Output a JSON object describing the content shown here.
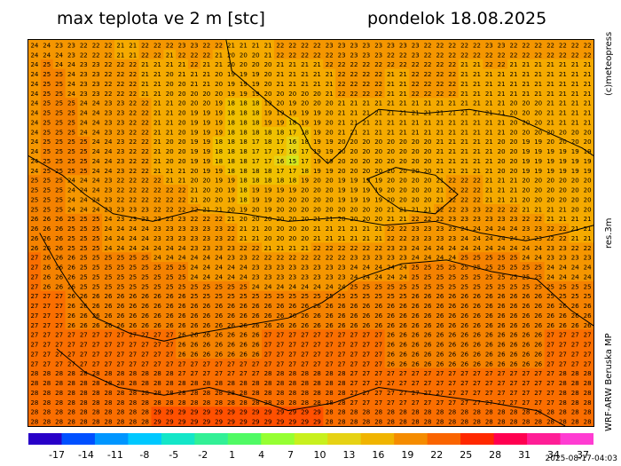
{
  "header": {
    "title": "max teplota ve 2 m [stc]",
    "day": "pondelok 18.08.2025"
  },
  "side_labels": {
    "copyright": "(c)meteopress",
    "resolution": "res.3m",
    "model": "WRF-ARW Beruska MP"
  },
  "timestamp": "2025-08-17-04:03",
  "colors": {
    "border": "#000000",
    "text": "#000000",
    "scale": [
      "#2800c8",
      "#0050ff",
      "#0096ff",
      "#00c8ff",
      "#14e6c8",
      "#32f096",
      "#50fa64",
      "#96ff32",
      "#c8f01e",
      "#e6d214",
      "#f0b400",
      "#f58c00",
      "#fa6400",
      "#ff2800",
      "#ff0050",
      "#ff1e96",
      "#ff3cd2"
    ]
  },
  "colorbar": {
    "ticks": [
      "-17",
      "-14",
      "-11",
      "-8",
      "-5",
      "-2",
      "1",
      "4",
      "7",
      "10",
      "13",
      "16",
      "19",
      "22",
      "25",
      "28",
      "31",
      "34",
      "37"
    ]
  },
  "map": {
    "cols": 46,
    "rows": 40,
    "seed_rows": [
      [
        24,
        24,
        23,
        23,
        22,
        22,
        22,
        21,
        21,
        22,
        22,
        22,
        23,
        23,
        22,
        22,
        21,
        21,
        21,
        21,
        22,
        22,
        22,
        22,
        23,
        23,
        23,
        23,
        23,
        23,
        23,
        23,
        22,
        22,
        22,
        22,
        22,
        23,
        23,
        22,
        22,
        22,
        22,
        22,
        22,
        22
      ],
      [
        24,
        25,
        25,
        24,
        23,
        23,
        22,
        22,
        22,
        21,
        21,
        20,
        20,
        21,
        21,
        20,
        19,
        19,
        19,
        20,
        21,
        21,
        21,
        21,
        21,
        22,
        22,
        22,
        22,
        21,
        21,
        22,
        22,
        22,
        22,
        21,
        21,
        21,
        21,
        21,
        21,
        21,
        21,
        21,
        21,
        21
      ],
      [
        24,
        25,
        25,
        25,
        24,
        24,
        23,
        23,
        22,
        22,
        21,
        21,
        20,
        19,
        19,
        19,
        18,
        18,
        18,
        19,
        19,
        18,
        19,
        19,
        20,
        21,
        21,
        21,
        21,
        21,
        21,
        21,
        21,
        21,
        21,
        21,
        21,
        21,
        21,
        20,
        20,
        20,
        21,
        21,
        21,
        21
      ],
      [
        24,
        25,
        25,
        25,
        25,
        24,
        24,
        23,
        22,
        22,
        21,
        20,
        20,
        19,
        19,
        18,
        18,
        18,
        17,
        17,
        16,
        15,
        17,
        19,
        19,
        20,
        20,
        20,
        20,
        20,
        20,
        20,
        20,
        21,
        21,
        21,
        21,
        21,
        20,
        20,
        19,
        19,
        19,
        19,
        19,
        19
      ],
      [
        25,
        25,
        25,
        24,
        24,
        24,
        23,
        22,
        22,
        22,
        22,
        22,
        22,
        21,
        20,
        20,
        19,
        18,
        19,
        19,
        20,
        20,
        20,
        20,
        20,
        19,
        19,
        19,
        19,
        20,
        20,
        20,
        20,
        21,
        22,
        22,
        22,
        21,
        21,
        21,
        20,
        20,
        20,
        20,
        20,
        20
      ],
      [
        26,
        26,
        26,
        25,
        25,
        25,
        24,
        24,
        24,
        24,
        23,
        23,
        23,
        23,
        23,
        23,
        22,
        21,
        21,
        20,
        20,
        20,
        20,
        21,
        21,
        21,
        21,
        21,
        21,
        22,
        22,
        23,
        23,
        23,
        23,
        24,
        24,
        24,
        24,
        24,
        23,
        23,
        22,
        22,
        21,
        21
      ],
      [
        27,
        26,
        26,
        26,
        25,
        25,
        25,
        25,
        25,
        25,
        25,
        25,
        25,
        24,
        24,
        24,
        24,
        24,
        23,
        23,
        23,
        23,
        23,
        23,
        23,
        23,
        24,
        24,
        24,
        24,
        24,
        25,
        25,
        25,
        25,
        25,
        25,
        25,
        25,
        25,
        25,
        25,
        24,
        24,
        24,
        24
      ],
      [
        27,
        27,
        27,
        26,
        26,
        26,
        26,
        26,
        26,
        26,
        26,
        26,
        26,
        26,
        26,
        26,
        26,
        26,
        26,
        26,
        26,
        26,
        26,
        26,
        26,
        26,
        26,
        26,
        26,
        26,
        26,
        26,
        26,
        26,
        26,
        26,
        26,
        26,
        26,
        26,
        26,
        26,
        26,
        26,
        26,
        26
      ],
      [
        27,
        27,
        27,
        27,
        27,
        27,
        27,
        27,
        27,
        27,
        27,
        27,
        26,
        26,
        26,
        26,
        26,
        26,
        26,
        27,
        27,
        27,
        27,
        27,
        27,
        27,
        27,
        27,
        27,
        26,
        26,
        26,
        26,
        26,
        26,
        26,
        26,
        26,
        26,
        26,
        26,
        26,
        27,
        27,
        27,
        27
      ],
      [
        28,
        28,
        28,
        28,
        28,
        28,
        28,
        28,
        28,
        28,
        28,
        28,
        28,
        28,
        28,
        28,
        28,
        28,
        28,
        28,
        28,
        28,
        28,
        28,
        28,
        28,
        27,
        27,
        27,
        27,
        27,
        27,
        27,
        27,
        27,
        27,
        27,
        27,
        27,
        27,
        27,
        27,
        27,
        28,
        28,
        28
      ],
      [
        28,
        28,
        28,
        28,
        28,
        28,
        28,
        28,
        28,
        28,
        29,
        29,
        29,
        29,
        29,
        29,
        29,
        29,
        29,
        29,
        29,
        29,
        29,
        29,
        28,
        28,
        28,
        28,
        28,
        28,
        28,
        28,
        28,
        28,
        28,
        28,
        28,
        28,
        28,
        28,
        28,
        28,
        28,
        28,
        28,
        28
      ]
    ],
    "contours": [
      [
        [
          0.0,
          0.3
        ],
        [
          0.06,
          0.35
        ],
        [
          0.1,
          0.4
        ],
        [
          0.15,
          0.45
        ],
        [
          0.22,
          0.47
        ],
        [
          0.3,
          0.44
        ],
        [
          0.38,
          0.45
        ],
        [
          0.46,
          0.47
        ],
        [
          0.55,
          0.46
        ],
        [
          0.63,
          0.48
        ],
        [
          0.72,
          0.47
        ],
        [
          0.8,
          0.5
        ],
        [
          0.88,
          0.52
        ],
        [
          0.95,
          0.5
        ],
        [
          1.0,
          0.48
        ]
      ],
      [
        [
          0.35,
          0.0
        ],
        [
          0.36,
          0.08
        ],
        [
          0.4,
          0.13
        ],
        [
          0.44,
          0.18
        ],
        [
          0.48,
          0.22
        ],
        [
          0.5,
          0.28
        ],
        [
          0.53,
          0.32
        ],
        [
          0.56,
          0.28
        ],
        [
          0.58,
          0.22
        ],
        [
          0.62,
          0.18
        ],
        [
          0.7,
          0.19
        ],
        [
          0.78,
          0.18
        ],
        [
          0.86,
          0.2
        ],
        [
          0.92,
          0.24
        ],
        [
          0.98,
          0.28
        ],
        [
          1.0,
          0.3
        ]
      ],
      [
        [
          0.02,
          0.5
        ],
        [
          0.05,
          0.58
        ],
        [
          0.08,
          0.65
        ],
        [
          0.12,
          0.72
        ],
        [
          0.18,
          0.76
        ],
        [
          0.24,
          0.78
        ],
        [
          0.3,
          0.76
        ],
        [
          0.38,
          0.74
        ],
        [
          0.46,
          0.72
        ],
        [
          0.52,
          0.68
        ],
        [
          0.58,
          0.62
        ],
        [
          0.66,
          0.58
        ],
        [
          0.74,
          0.57
        ],
        [
          0.82,
          0.6
        ],
        [
          0.9,
          0.62
        ],
        [
          0.96,
          0.7
        ],
        [
          1.0,
          0.74
        ]
      ],
      [
        [
          0.05,
          0.8
        ],
        [
          0.1,
          0.86
        ],
        [
          0.16,
          0.9
        ],
        [
          0.24,
          0.92
        ],
        [
          0.32,
          0.9
        ],
        [
          0.4,
          0.93
        ],
        [
          0.46,
          0.96
        ],
        [
          0.54,
          0.94
        ],
        [
          0.62,
          0.9
        ],
        [
          0.72,
          0.92
        ],
        [
          0.82,
          0.94
        ],
        [
          0.9,
          0.96
        ],
        [
          0.95,
          1.0
        ]
      ],
      [
        [
          0.6,
          0.36
        ],
        [
          0.65,
          0.33
        ],
        [
          0.72,
          0.35
        ],
        [
          0.76,
          0.4
        ],
        [
          0.72,
          0.45
        ],
        [
          0.66,
          0.44
        ],
        [
          0.62,
          0.4
        ],
        [
          0.6,
          0.36
        ]
      ]
    ]
  }
}
